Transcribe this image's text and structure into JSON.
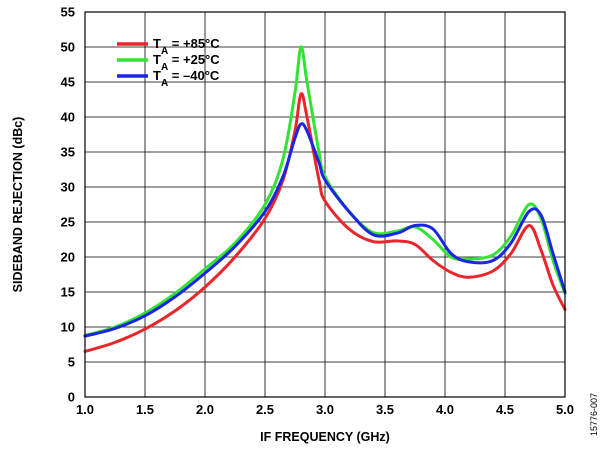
{
  "chart_data": {
    "type": "line",
    "title": "",
    "xlabel": "IF FREQUENCY (GHz)",
    "ylabel": "SIDEBAND REJECTION (dBc)",
    "xlim": [
      1.0,
      5.0
    ],
    "ylim": [
      0,
      55
    ],
    "x_ticks": [
      "1.0",
      "1.5",
      "2.0",
      "2.5",
      "3.0",
      "3.5",
      "4.0",
      "4.5",
      "5.0"
    ],
    "y_ticks": [
      "0",
      "5",
      "10",
      "15",
      "20",
      "25",
      "30",
      "35",
      "40",
      "45",
      "50",
      "55"
    ],
    "grid": true,
    "legend_position": "top-left",
    "series": [
      {
        "name": "TA = +85°C",
        "legend": {
          "prefix": "T",
          "sub": "A",
          "suffix": " = +85°C"
        },
        "color": "#e8262b",
        "x": [
          1.0,
          1.25,
          1.5,
          1.75,
          2.0,
          2.25,
          2.5,
          2.65,
          2.75,
          2.8,
          2.85,
          2.95,
          3.0,
          3.2,
          3.4,
          3.6,
          3.75,
          3.9,
          4.05,
          4.2,
          4.4,
          4.55,
          4.7,
          4.8,
          4.9,
          5.0
        ],
        "y": [
          6.5,
          7.8,
          9.7,
          12.3,
          15.7,
          20.0,
          25.5,
          31.0,
          38.0,
          43.3,
          40.0,
          31.0,
          28.0,
          24.0,
          22.2,
          22.3,
          21.8,
          19.5,
          17.8,
          17.1,
          18.0,
          20.5,
          24.5,
          21.0,
          16.0,
          12.5
        ]
      },
      {
        "name": "TA = +25°C",
        "legend": {
          "prefix": "T",
          "sub": "A",
          "suffix": " = +25°C"
        },
        "color": "#33e333",
        "x": [
          1.0,
          1.25,
          1.5,
          1.75,
          2.0,
          2.25,
          2.5,
          2.65,
          2.75,
          2.8,
          2.85,
          2.95,
          3.0,
          3.2,
          3.4,
          3.6,
          3.75,
          3.9,
          4.05,
          4.2,
          4.4,
          4.55,
          4.7,
          4.8,
          4.9,
          5.0
        ],
        "y": [
          8.8,
          10.0,
          12.0,
          14.8,
          18.3,
          22.0,
          27.5,
          34.0,
          43.5,
          50.0,
          45.0,
          35.0,
          31.5,
          26.5,
          23.5,
          23.7,
          24.3,
          22.5,
          20.0,
          19.7,
          20.3,
          23.0,
          27.5,
          25.5,
          19.5,
          14.8
        ]
      },
      {
        "name": "TA = –40°C",
        "legend": {
          "prefix": "T",
          "sub": "A",
          "suffix": " = –40°C"
        },
        "color": "#1a26e0",
        "x": [
          1.0,
          1.25,
          1.5,
          1.75,
          2.0,
          2.25,
          2.5,
          2.65,
          2.75,
          2.8,
          2.85,
          2.95,
          3.0,
          3.2,
          3.4,
          3.6,
          3.75,
          3.9,
          4.05,
          4.2,
          4.4,
          4.55,
          4.7,
          4.8,
          4.9,
          5.0
        ],
        "y": [
          8.7,
          9.8,
          11.6,
          14.3,
          17.7,
          21.5,
          26.5,
          31.5,
          37.0,
          39.0,
          38.0,
          33.5,
          31.0,
          26.5,
          23.2,
          23.4,
          24.5,
          24.0,
          20.5,
          19.3,
          19.5,
          22.0,
          26.5,
          26.0,
          20.5,
          15.0
        ]
      }
    ]
  },
  "figure_id": "15776-007"
}
